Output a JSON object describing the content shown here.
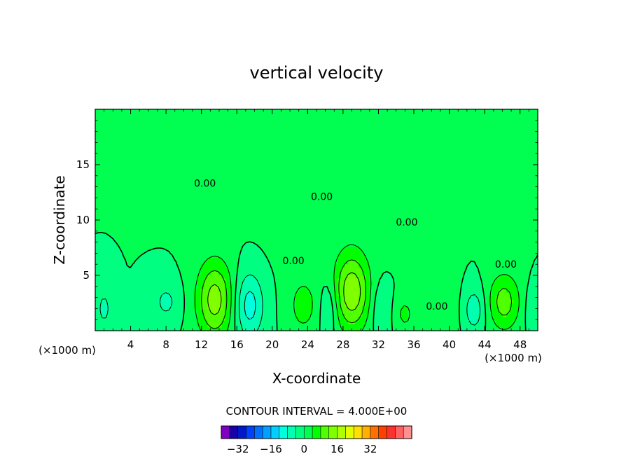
{
  "chart_data": {
    "type": "contour",
    "title": "vertical velocity",
    "xlabel": "X-coordinate",
    "ylabel": "Z-coordinate",
    "x_unit_label": "(×1000 m)",
    "x_unit_label_right": "(×1000 m)",
    "xlim": [
      0,
      50
    ],
    "ylim": [
      0,
      20
    ],
    "x_ticks": [
      4,
      8,
      12,
      16,
      20,
      24,
      28,
      32,
      36,
      40,
      44,
      48
    ],
    "y_ticks": [
      5,
      10,
      15
    ],
    "contour_interval_text": "CONTOUR INTERVAL = 4.000E+00",
    "contour_labels": [
      {
        "text": "0.00",
        "x": 12.4,
        "y": 13.0
      },
      {
        "text": "0.00",
        "x": 25.6,
        "y": 11.8
      },
      {
        "text": "0.00",
        "x": 35.2,
        "y": 9.5
      },
      {
        "text": "0.00",
        "x": 22.4,
        "y": 6.0
      },
      {
        "text": "0.00",
        "x": 46.4,
        "y": 5.7
      },
      {
        "text": "0.00",
        "x": 38.6,
        "y": 1.9
      }
    ],
    "features": [
      {
        "x": 13.5,
        "z": 2.8,
        "value": 14,
        "sx": 2.0,
        "sz": 3.5
      },
      {
        "x": 29.0,
        "z": 3.5,
        "value": 15,
        "sx": 2.0,
        "sz": 3.5
      },
      {
        "x": 46.2,
        "z": 2.6,
        "value": 10,
        "sx": 1.8,
        "sz": 2.6
      },
      {
        "x": 23.5,
        "z": 2.3,
        "value": 6,
        "sx": 1.6,
        "sz": 2.5
      },
      {
        "x": 35.0,
        "z": 1.5,
        "value": 5,
        "sx": 1.1,
        "sz": 1.6
      },
      {
        "x": 17.4,
        "z": 2.3,
        "value": -10,
        "sx": 1.6,
        "sz": 3.0
      },
      {
        "x": 8.0,
        "z": 2.6,
        "value": -5,
        "sx": 1.5,
        "sz": 1.8
      },
      {
        "x": 26.4,
        "z": 2.0,
        "value": -5,
        "sx": 1.0,
        "sz": 2.5
      },
      {
        "x": 32.2,
        "z": 2.0,
        "value": -4,
        "sx": 1.1,
        "sz": 2.5
      },
      {
        "x": 42.8,
        "z": 1.9,
        "value": -7,
        "sx": 1.2,
        "sz": 2.0
      },
      {
        "x": 1.0,
        "z": 2.0,
        "value": -5,
        "sx": 1.0,
        "sz": 2.0
      },
      {
        "x": 49.5,
        "z": 2.0,
        "value": -4,
        "sx": 0.9,
        "sz": 2.0
      },
      {
        "x": 39.5,
        "z": 2.0,
        "value": 2,
        "sx": 2.0,
        "sz": 3.0
      },
      {
        "x": 26.0,
        "z": 12.0,
        "value": 1,
        "sx": 8.0,
        "sz": 7.0
      }
    ],
    "colorbar": {
      "tick_labels": [
        "−32",
        "−16",
        "0",
        "16",
        "32"
      ],
      "tick_values": [
        -32,
        -16,
        0,
        16,
        32
      ],
      "min": -40,
      "max": 40,
      "step": 4,
      "colors": [
        "#7f00bf",
        "#1a00a5",
        "#0018c8",
        "#0040ff",
        "#0070ff",
        "#00a0ff",
        "#00d0ff",
        "#00ffe0",
        "#00ffb0",
        "#00ff80",
        "#00ff50",
        "#00ff00",
        "#50ff00",
        "#80ff00",
        "#b0ff00",
        "#e0ff00",
        "#ffe000",
        "#ffb000",
        "#ff7000",
        "#ff4000",
        "#ff3030",
        "#ff6060",
        "#ff9090"
      ]
    }
  }
}
